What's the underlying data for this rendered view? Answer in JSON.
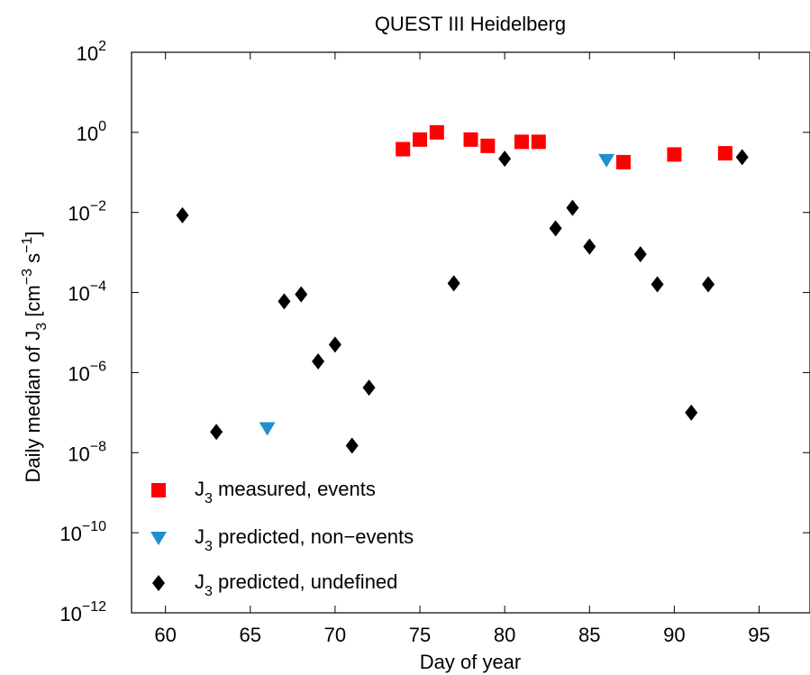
{
  "chart_data": {
    "type": "scatter",
    "title": "QUEST III Heidelberg",
    "xlabel": "Day of year",
    "ylabel": {
      "base": "Daily median of J",
      "sub": "3",
      "unit_open": " [cm",
      "sup1": "−3",
      "mid": " s",
      "sup2": "−1",
      "unit_close": "]"
    },
    "xlim": [
      58,
      98
    ],
    "ylim_log10": [
      -12,
      2
    ],
    "yscale": "log",
    "x_ticks": [
      60,
      65,
      70,
      75,
      80,
      85,
      90,
      95
    ],
    "y_tick_exponents": [
      -12,
      -10,
      -8,
      -6,
      -4,
      -2,
      0,
      2
    ],
    "y_tick_base": "10",
    "grid": false,
    "legend_position": "lower-left",
    "series": [
      {
        "name": "J3 measured, events",
        "legend": {
          "pre": "J",
          "sub": "3",
          "post": " measured, events"
        },
        "marker": "square",
        "color": "#ff0000",
        "points": [
          {
            "x": 74,
            "y": 0.38
          },
          {
            "x": 75,
            "y": 0.66
          },
          {
            "x": 76,
            "y": 1.0
          },
          {
            "x": 78,
            "y": 0.66
          },
          {
            "x": 79,
            "y": 0.46
          },
          {
            "x": 81,
            "y": 0.58
          },
          {
            "x": 82,
            "y": 0.58
          },
          {
            "x": 87,
            "y": 0.18
          },
          {
            "x": 90,
            "y": 0.28
          },
          {
            "x": 93,
            "y": 0.3
          }
        ]
      },
      {
        "name": "J3 predicted, non-events",
        "legend": {
          "pre": "J",
          "sub": "3",
          "post": " predicted, non−events"
        },
        "marker": "triangle-down",
        "color": "#1f8fcf",
        "points": [
          {
            "x": 66,
            "y": 4e-08
          },
          {
            "x": 86,
            "y": 0.2
          }
        ]
      },
      {
        "name": "J3 predicted, undefined",
        "legend": {
          "pre": "J",
          "sub": "3",
          "post": " predicted, undefined"
        },
        "marker": "diamond",
        "color": "#000000",
        "points": [
          {
            "x": 61,
            "y": 0.0085
          },
          {
            "x": 63,
            "y": 3.3e-08
          },
          {
            "x": 67,
            "y": 6e-05
          },
          {
            "x": 68,
            "y": 9e-05
          },
          {
            "x": 69,
            "y": 1.9e-06
          },
          {
            "x": 70,
            "y": 5e-06
          },
          {
            "x": 71,
            "y": 1.5e-08
          },
          {
            "x": 72,
            "y": 4.2e-07
          },
          {
            "x": 77,
            "y": 0.00017
          },
          {
            "x": 80,
            "y": 0.22
          },
          {
            "x": 83,
            "y": 0.004
          },
          {
            "x": 84,
            "y": 0.013
          },
          {
            "x": 85,
            "y": 0.0014
          },
          {
            "x": 88,
            "y": 0.0009
          },
          {
            "x": 89,
            "y": 0.00016
          },
          {
            "x": 91,
            "y": 1e-07
          },
          {
            "x": 92,
            "y": 0.00016
          },
          {
            "x": 94,
            "y": 0.24
          }
        ]
      }
    ]
  }
}
